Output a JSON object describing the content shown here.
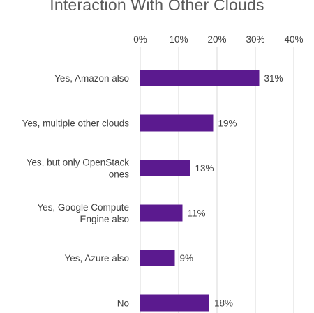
{
  "chart_data": {
    "type": "bar",
    "orientation": "horizontal",
    "title": "Interaction With Other Clouds",
    "categories": [
      [
        "Yes, Amazon also"
      ],
      [
        "Yes, multiple other clouds"
      ],
      [
        "Yes, but only OpenStack",
        "ones"
      ],
      [
        "Yes, Google Compute",
        "Engine also"
      ],
      [
        "Yes, Azure also"
      ],
      [
        "No"
      ]
    ],
    "values": [
      31,
      19,
      13,
      11,
      9,
      18
    ],
    "value_labels": [
      "31%",
      "19%",
      "13%",
      "11%",
      "9%",
      "18%"
    ],
    "xlim": [
      0,
      40
    ],
    "xticks": [
      0,
      10,
      20,
      30,
      40
    ],
    "xtick_labels": [
      "0%",
      "10%",
      "20%",
      "30%",
      "40%"
    ],
    "axis_position": "top",
    "grid": true,
    "bar_color": "#5b1a8f"
  }
}
